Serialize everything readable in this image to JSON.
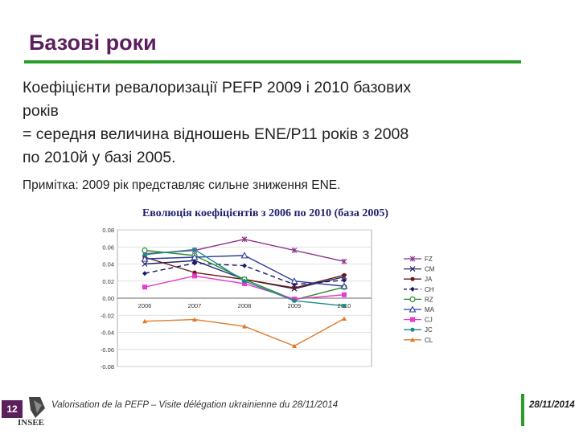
{
  "slide": {
    "title": "Базові роки",
    "body_line1": "Коефіцієнти ревалоризації PEFP 2009 і 2010 базових",
    "body_line2": "років",
    "body_line3": "= середня величина відношень ENE/P11 років з 2008",
    "body_line4": "по 2010й у базі 2005.",
    "note": "Примітка: 2009 рік представляє сильне зниження ENE.",
    "chart_title": "Еволюція коефіцієнтів з 2006 по 2010 (база 2005)",
    "slide_number": "12",
    "logo_text": "INSEE",
    "footer_text": "Valorisation de la PEFP – Visite délégation ukrainienne du 28/11/2014",
    "footer_date": "28/11/2014"
  },
  "colors": {
    "title": "#5c1f5e",
    "rule": "#2a9d2a"
  },
  "chart_data": {
    "type": "line",
    "x": [
      "2006",
      "2007",
      "2008",
      "2009",
      "2010"
    ],
    "ylim": [
      -0.08,
      0.08
    ],
    "yticks": [
      "0.08",
      "0.06",
      "0.04",
      "0.02",
      "0.00",
      "-0.02",
      "-0.04",
      "-0.06",
      "-0.08"
    ],
    "grid": true,
    "legend_position": "right",
    "series": [
      {
        "name": "FZ",
        "color": "#8b2f8b",
        "marker": "star",
        "dash": "",
        "values": [
          0.052,
          0.056,
          0.069,
          0.056,
          0.043
        ]
      },
      {
        "name": "CM",
        "color": "#26266b",
        "marker": "x",
        "dash": "",
        "values": [
          0.04,
          0.044,
          0.022,
          0.011,
          0.025
        ]
      },
      {
        "name": "JA",
        "color": "#6b1a1a",
        "marker": "dot",
        "dash": "",
        "values": [
          0.048,
          0.03,
          0.022,
          0.012,
          0.027
        ]
      },
      {
        "name": "CH",
        "color": "#1a1a5e",
        "marker": "diamond",
        "dash": "6,4",
        "values": [
          0.029,
          0.041,
          0.038,
          0.016,
          0.021
        ]
      },
      {
        "name": "RZ",
        "color": "#2a8a2a",
        "marker": "circle",
        "dash": "",
        "values": [
          0.056,
          0.05,
          0.022,
          -0.002,
          0.013
        ]
      },
      {
        "name": "MA",
        "color": "#2b3c9a",
        "marker": "triangle",
        "dash": "",
        "values": [
          0.046,
          0.048,
          0.05,
          0.02,
          0.014
        ]
      },
      {
        "name": "CJ",
        "color": "#e83ad0",
        "marker": "square",
        "dash": "",
        "values": [
          0.013,
          0.026,
          0.017,
          -0.001,
          0.004
        ]
      },
      {
        "name": "JC",
        "color": "#1a8a8a",
        "marker": "dot",
        "dash": "",
        "values": [
          0.051,
          0.057,
          0.02,
          -0.003,
          -0.009
        ]
      },
      {
        "name": "CL",
        "color": "#e07a2a",
        "marker": "tri-fill",
        "dash": "",
        "values": [
          -0.027,
          -0.025,
          -0.033,
          -0.056,
          -0.024
        ]
      }
    ]
  }
}
